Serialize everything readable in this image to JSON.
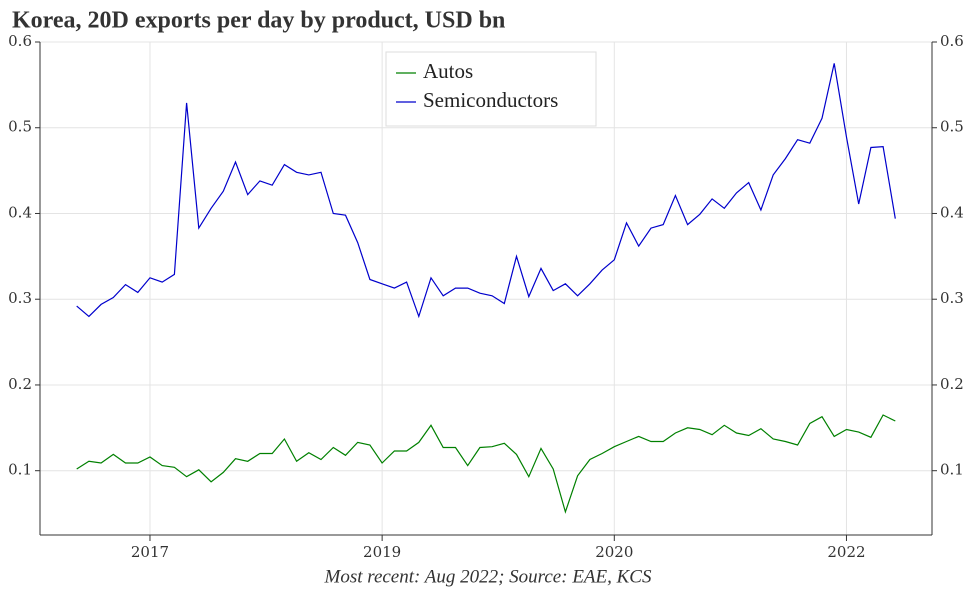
{
  "chart_data": {
    "type": "line",
    "title": "Korea, 20D exports per day by product, USD bn",
    "footnote": "Most recent: Aug 2022; Source: EAE, KCS",
    "x": [
      "2017-01",
      "2017-02",
      "2017-03",
      "2017-04",
      "2017-05",
      "2017-06",
      "2017-07",
      "2017-08",
      "2017-09",
      "2017-10",
      "2017-11",
      "2017-12",
      "2018-01",
      "2018-02",
      "2018-03",
      "2018-04",
      "2018-05",
      "2018-06",
      "2018-07",
      "2018-08",
      "2018-09",
      "2018-10",
      "2018-11",
      "2018-12",
      "2019-01",
      "2019-02",
      "2019-03",
      "2019-04",
      "2019-05",
      "2019-06",
      "2019-07",
      "2019-08",
      "2019-09",
      "2019-10",
      "2019-11",
      "2019-12",
      "2020-01",
      "2020-02",
      "2020-03",
      "2020-04",
      "2020-05",
      "2020-06",
      "2020-07",
      "2020-08",
      "2020-09",
      "2020-10",
      "2020-11",
      "2020-12",
      "2021-01",
      "2021-02",
      "2021-03",
      "2021-04",
      "2021-05",
      "2021-06",
      "2021-07",
      "2021-08",
      "2021-09",
      "2021-10",
      "2021-11",
      "2021-12",
      "2022-01",
      "2022-02",
      "2022-03",
      "2022-04",
      "2022-05",
      "2022-06",
      "2022-07",
      "2022-08"
    ],
    "series": [
      {
        "name": "Autos",
        "color": "#008000",
        "values": [
          0.102,
          0.111,
          0.109,
          0.119,
          0.109,
          0.109,
          0.116,
          0.106,
          0.104,
          0.093,
          0.101,
          0.087,
          0.098,
          0.114,
          0.111,
          0.12,
          0.12,
          0.137,
          0.111,
          0.121,
          0.113,
          0.127,
          0.118,
          0.133,
          0.13,
          0.109,
          0.123,
          0.123,
          0.133,
          0.153,
          0.127,
          0.127,
          0.106,
          0.127,
          0.128,
          0.132,
          0.119,
          0.093,
          0.126,
          0.102,
          0.052,
          0.094,
          0.113,
          0.12,
          0.128,
          0.134,
          0.14,
          0.134,
          0.134,
          0.144,
          0.15,
          0.148,
          0.142,
          0.153,
          0.144,
          0.141,
          0.149,
          0.137,
          0.134,
          0.13,
          0.155,
          0.163,
          0.14,
          0.148,
          0.145,
          0.139,
          0.165,
          0.158
        ]
      },
      {
        "name": "Semiconductors",
        "color": "#0000cc",
        "values": [
          0.292,
          0.28,
          0.294,
          0.302,
          0.317,
          0.308,
          0.325,
          0.32,
          0.329,
          0.529,
          0.383,
          0.406,
          0.426,
          0.46,
          0.422,
          0.438,
          0.433,
          0.457,
          0.448,
          0.445,
          0.448,
          0.4,
          0.398,
          0.366,
          0.323,
          0.318,
          0.313,
          0.32,
          0.28,
          0.325,
          0.304,
          0.313,
          0.313,
          0.307,
          0.304,
          0.295,
          0.35,
          0.303,
          0.336,
          0.31,
          0.318,
          0.304,
          0.318,
          0.334,
          0.346,
          0.389,
          0.362,
          0.383,
          0.387,
          0.421,
          0.387,
          0.399,
          0.417,
          0.406,
          0.424,
          0.436,
          0.404,
          0.445,
          0.464,
          0.486,
          0.482,
          0.511,
          0.575,
          0.489,
          0.411,
          0.477,
          0.478,
          0.394
        ]
      }
    ],
    "xlim": [
      "2016-10",
      "2022-11"
    ],
    "xticks": [
      {
        "value": "2017-07",
        "label": "2017"
      },
      {
        "value": "2019-02",
        "label": "2019"
      },
      {
        "value": "2020-09",
        "label": "2020"
      },
      {
        "value": "2022-04",
        "label": "2022"
      }
    ],
    "ylim": [
      0.025,
      0.6
    ],
    "yticks": [
      0.1,
      0.2,
      0.3,
      0.4,
      0.5,
      0.6
    ],
    "y2lim": [
      0.025,
      0.6
    ],
    "y2ticks": [
      0.1,
      0.2,
      0.3,
      0.4,
      0.5,
      0.6
    ],
    "grid": true,
    "legend": "upper center"
  }
}
